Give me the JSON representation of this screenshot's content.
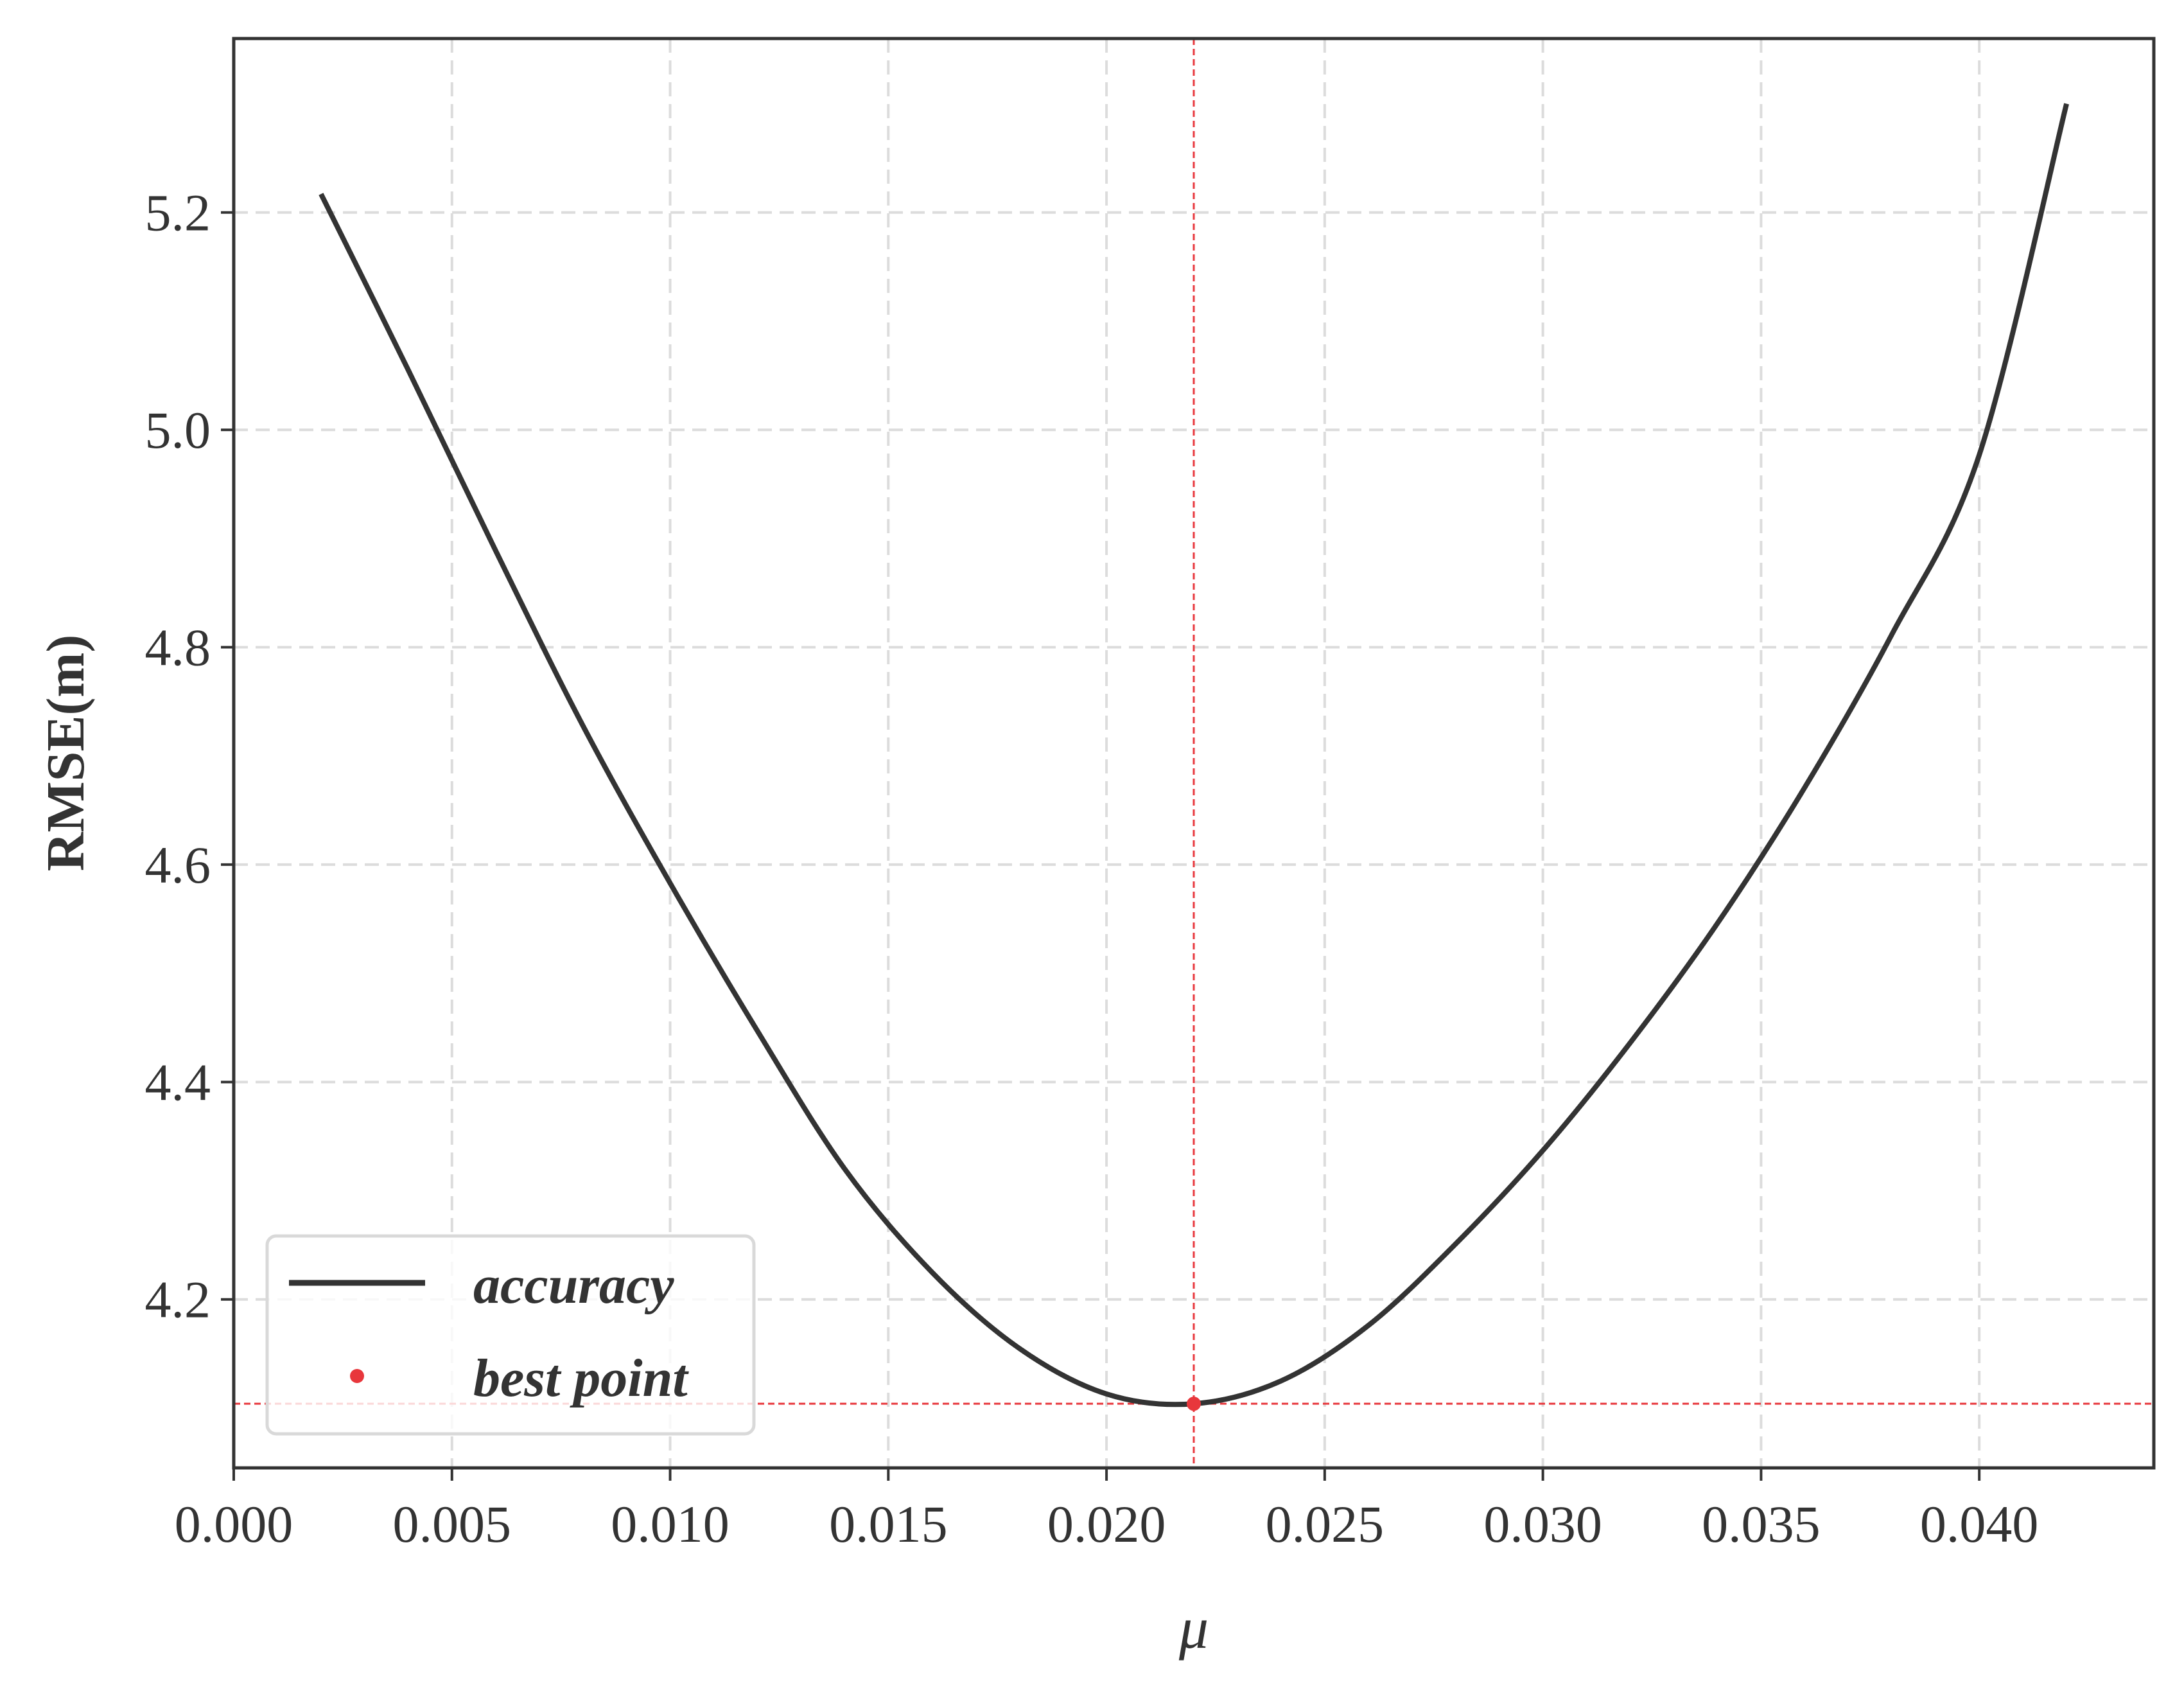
{
  "chart_data": {
    "type": "line",
    "xlabel": "μ",
    "ylabel": "RMSE(m)",
    "xlim": [
      0.0,
      0.044
    ],
    "ylim": [
      4.045,
      5.36
    ],
    "xticks": [
      0.0,
      0.005,
      0.01,
      0.015,
      0.02,
      0.025,
      0.03,
      0.035,
      0.04
    ],
    "xtick_labels": [
      "0.000",
      "0.005",
      "0.010",
      "0.015",
      "0.020",
      "0.025",
      "0.030",
      "0.035",
      "0.040"
    ],
    "yticks": [
      4.2,
      4.4,
      4.6,
      4.8,
      5.0,
      5.2
    ],
    "ytick_labels": [
      "4.2",
      "4.4",
      "4.6",
      "4.8",
      "5.0",
      "5.2"
    ],
    "grid": true,
    "legend_position": "lower-left",
    "series": [
      {
        "name": "accuracy",
        "color": "#333333",
        "x": [
          0.002,
          0.004,
          0.006,
          0.008,
          0.01,
          0.012,
          0.014,
          0.016,
          0.018,
          0.02,
          0.022,
          0.024,
          0.026,
          0.028,
          0.03,
          0.032,
          0.034,
          0.036,
          0.038,
          0.04,
          0.042
        ],
        "y": [
          5.217,
          5.055,
          4.889,
          4.728,
          4.583,
          4.447,
          4.32,
          4.225,
          4.155,
          4.113,
          4.104,
          4.125,
          4.176,
          4.251,
          4.337,
          4.436,
          4.546,
          4.671,
          4.812,
          4.977,
          5.3
        ]
      }
    ],
    "best_point": {
      "name": "best point",
      "x": 0.022,
      "y": 4.104,
      "color": "#e8373c"
    }
  }
}
